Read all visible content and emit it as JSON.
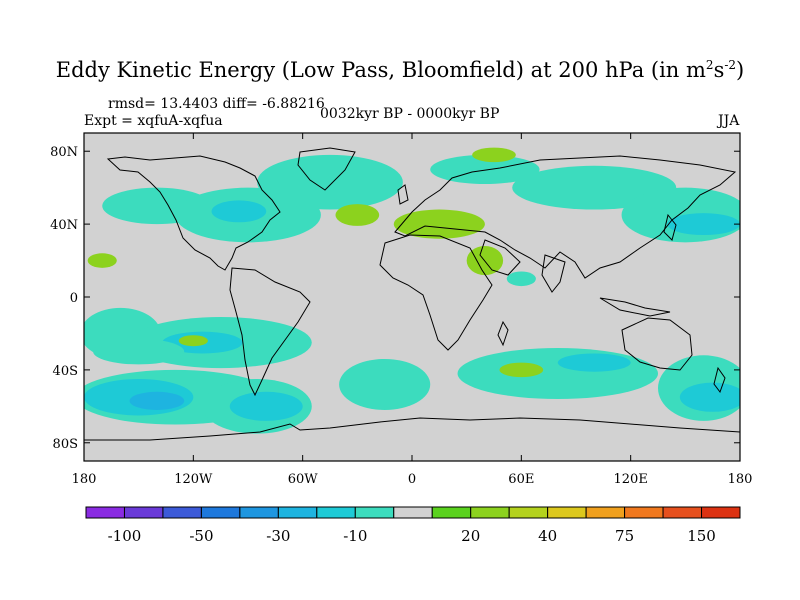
{
  "title": {
    "main": "Eddy Kinetic Energy (Low Pass, Bloomfield) at 200 hPa (in m",
    "sup1": "2",
    "mid": "s",
    "sup2": "-2",
    "end": ")"
  },
  "stats": "rmsd= 13.4403 diff= -6.88216",
  "experiment": "Expt = xqfuA-xqfua",
  "period": "0032kyr BP - 0000kyr BP",
  "season": "JJA",
  "axes": {
    "lat_labels": [
      "80N",
      "40N",
      "0",
      "40S",
      "80S"
    ],
    "lat_values": [
      80,
      40,
      0,
      -40,
      -80
    ],
    "lon_labels": [
      "180",
      "120W",
      "60W",
      "0",
      "60E",
      "120E",
      "180"
    ],
    "lon_values": [
      -180,
      -120,
      -60,
      0,
      60,
      120,
      180
    ]
  },
  "colorbar": {
    "labels": [
      "-100",
      "-50",
      "-30",
      "-10",
      "20",
      "40",
      "75",
      "150"
    ],
    "label_positions": [
      1,
      3,
      5,
      7,
      10,
      12,
      14,
      16
    ],
    "colors": [
      "#8a2be2",
      "#6a3ad8",
      "#3c5ad8",
      "#1e78dc",
      "#1e96e0",
      "#1eb4e0",
      "#1ecad6",
      "#3cdcbe",
      "#d2d2d2",
      "#5ad21e",
      "#8cd21e",
      "#b4d21e",
      "#dcc81e",
      "#f0a01e",
      "#f0781e",
      "#e6501e",
      "#dc3212"
    ],
    "neutral_color": "#d2d2d2"
  },
  "anomaly_regions": [
    {
      "lon": -160,
      "lat": -20,
      "rx": 22,
      "ry": 14,
      "level": "neg10"
    },
    {
      "lon": -105,
      "lat": -25,
      "rx": 50,
      "ry": 14,
      "level": "neg10"
    },
    {
      "lon": -115,
      "lat": -25,
      "rx": 22,
      "ry": 6,
      "level": "neg30"
    },
    {
      "lon": -120,
      "lat": -24,
      "rx": 8,
      "ry": 3,
      "level": "pos20"
    },
    {
      "lon": -130,
      "lat": -55,
      "rx": 55,
      "ry": 15,
      "level": "neg10"
    },
    {
      "lon": -150,
      "lat": -55,
      "rx": 30,
      "ry": 10,
      "level": "neg30"
    },
    {
      "lon": -140,
      "lat": -57,
      "rx": 15,
      "ry": 5,
      "level": "neg50"
    },
    {
      "lon": -85,
      "lat": -60,
      "rx": 30,
      "ry": 15,
      "level": "neg10"
    },
    {
      "lon": -80,
      "lat": -60,
      "rx": 20,
      "ry": 8,
      "level": "neg30"
    },
    {
      "lon": -15,
      "lat": -48,
      "rx": 25,
      "ry": 14,
      "level": "neg10"
    },
    {
      "lon": 80,
      "lat": -42,
      "rx": 55,
      "ry": 14,
      "level": "neg10"
    },
    {
      "lon": 100,
      "lat": -36,
      "rx": 20,
      "ry": 5,
      "level": "neg30"
    },
    {
      "lon": 160,
      "lat": -50,
      "rx": 25,
      "ry": 18,
      "level": "neg10"
    },
    {
      "lon": 165,
      "lat": -55,
      "rx": 18,
      "ry": 8,
      "level": "neg30"
    },
    {
      "lon": -150,
      "lat": -30,
      "rx": 25,
      "ry": 7,
      "level": "neg10"
    },
    {
      "lon": -140,
      "lat": 50,
      "rx": 30,
      "ry": 10,
      "level": "neg10"
    },
    {
      "lon": -90,
      "lat": 45,
      "rx": 40,
      "ry": 15,
      "level": "neg10"
    },
    {
      "lon": -95,
      "lat": 47,
      "rx": 15,
      "ry": 6,
      "level": "neg30"
    },
    {
      "lon": -45,
      "lat": 63,
      "rx": 40,
      "ry": 15,
      "level": "neg10"
    },
    {
      "lon": -30,
      "lat": 45,
      "rx": 12,
      "ry": 6,
      "level": "pos20"
    },
    {
      "lon": 40,
      "lat": 70,
      "rx": 30,
      "ry": 8,
      "level": "neg10"
    },
    {
      "lon": 45,
      "lat": 78,
      "rx": 12,
      "ry": 4,
      "level": "pos20"
    },
    {
      "lon": 100,
      "lat": 60,
      "rx": 45,
      "ry": 12,
      "level": "neg10"
    },
    {
      "lon": 150,
      "lat": 45,
      "rx": 35,
      "ry": 15,
      "level": "neg10"
    },
    {
      "lon": 160,
      "lat": 40,
      "rx": 20,
      "ry": 6,
      "level": "neg30"
    },
    {
      "lon": 15,
      "lat": 40,
      "rx": 25,
      "ry": 8,
      "level": "pos20"
    },
    {
      "lon": 40,
      "lat": 20,
      "rx": 10,
      "ry": 8,
      "level": "pos20"
    },
    {
      "lon": 60,
      "lat": -40,
      "rx": 12,
      "ry": 4,
      "level": "pos20"
    },
    {
      "lon": -170,
      "lat": 20,
      "rx": 8,
      "ry": 4,
      "level": "pos20"
    },
    {
      "lon": 60,
      "lat": 10,
      "rx": 8,
      "ry": 4,
      "level": "neg10"
    }
  ],
  "level_colors": {
    "neg10": "#3cdcbe",
    "neg30": "#1ecad6",
    "neg50": "#1eb4e0",
    "pos20": "#8cd21e"
  }
}
